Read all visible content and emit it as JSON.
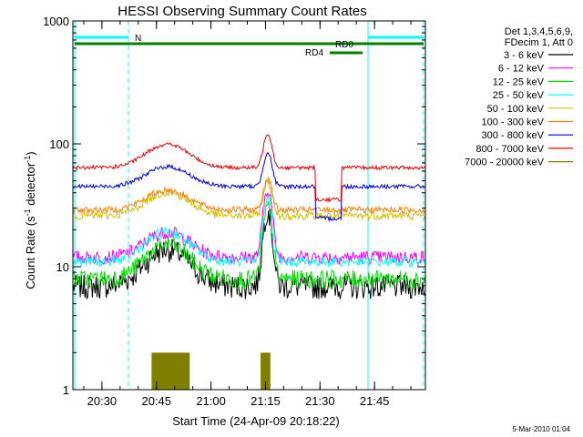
{
  "chart_data": {
    "type": "line",
    "title": "HESSI Observing Summary Count Rates",
    "xlabel": "Start Time (24-Apr-09 20:18:22)",
    "ylabel_main": "Count Rate (s",
    "ylabel_sup1": "-1",
    "ylabel_mid": " detector",
    "ylabel_sup2": "-1",
    "ylabel_end": ")",
    "y_scale": "log",
    "ylim": [
      1,
      1000
    ],
    "xlim_minutes": [
      20.3667,
      21.9833
    ],
    "x_ticks": [
      {
        "v": 20.5,
        "label": "20:30"
      },
      {
        "v": 20.75,
        "label": "20:45"
      },
      {
        "v": 21.0,
        "label": "21:00"
      },
      {
        "v": 21.25,
        "label": "21:15"
      },
      {
        "v": 21.5,
        "label": "21:30"
      },
      {
        "v": 21.75,
        "label": "21:45"
      }
    ],
    "y_ticks": [
      {
        "v": 1,
        "label": "1"
      },
      {
        "v": 10,
        "label": "10"
      },
      {
        "v": 100,
        "label": "100"
      },
      {
        "v": 1000,
        "label": "1000"
      }
    ],
    "legend_header": [
      "Det 1,3,4,5,6,9,",
      "FDecim 1, Att 0"
    ],
    "series": [
      {
        "name": "3 - 6 keV",
        "color": "#000000",
        "level": 7
      },
      {
        "name": "6 - 12 keV",
        "color": "#ff00ff",
        "level": 12
      },
      {
        "name": "12 - 25 keV",
        "color": "#00dd00",
        "level": 8
      },
      {
        "name": "25 - 50 keV",
        "color": "#00ffff",
        "level": 11
      },
      {
        "name": "50 - 100 keV",
        "color": "#d4c000",
        "level": 26
      },
      {
        "name": "100 - 300 keV",
        "color": "#ff8000",
        "level": 29
      },
      {
        "name": "300 - 800 keV",
        "color": "#0000dd",
        "level": 45
      },
      {
        "name": "800 - 7000 keV",
        "color": "#ee0000",
        "level": 64
      },
      {
        "name": "7000 - 20000 keV",
        "color": "#808000",
        "level": 1
      }
    ],
    "flags": [
      {
        "label": "N",
        "color": "#00ffff"
      },
      {
        "label": "RD0",
        "color": "#008000"
      },
      {
        "label": "RD4",
        "color": "#008000"
      }
    ],
    "footer": "5-Mar-2010 01:04"
  }
}
